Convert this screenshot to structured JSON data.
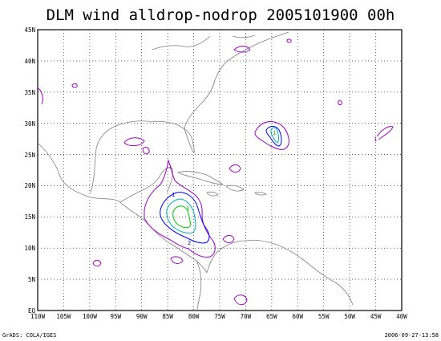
{
  "title": "DLM wind alldrop-nodrop 2005101900 00h",
  "footer": {
    "left": "GrADS: COLA/IGES",
    "right": "2006-09-27-13:58"
  },
  "map": {
    "lat_labels": [
      "EQ",
      "5N",
      "10N",
      "15N",
      "20N",
      "25N",
      "30N",
      "35N",
      "40N",
      "45N"
    ],
    "lon_labels": [
      "110W",
      "105W",
      "100W",
      "95W",
      "90W",
      "85W",
      "80W",
      "75W",
      "70W",
      "65W",
      "60W",
      "55W",
      "50W",
      "45W",
      "40W"
    ],
    "contour_labels": [
      "1",
      "2",
      "1",
      "1",
      "1",
      "1"
    ],
    "colors": {
      "frame": "#000000",
      "grid": "#000000",
      "coast": "#7f7f7f",
      "contour_1": "#a000c8",
      "contour_2": "#0000ff",
      "contour_3": "#00b4b4",
      "contour_4": "#00c800"
    }
  }
}
